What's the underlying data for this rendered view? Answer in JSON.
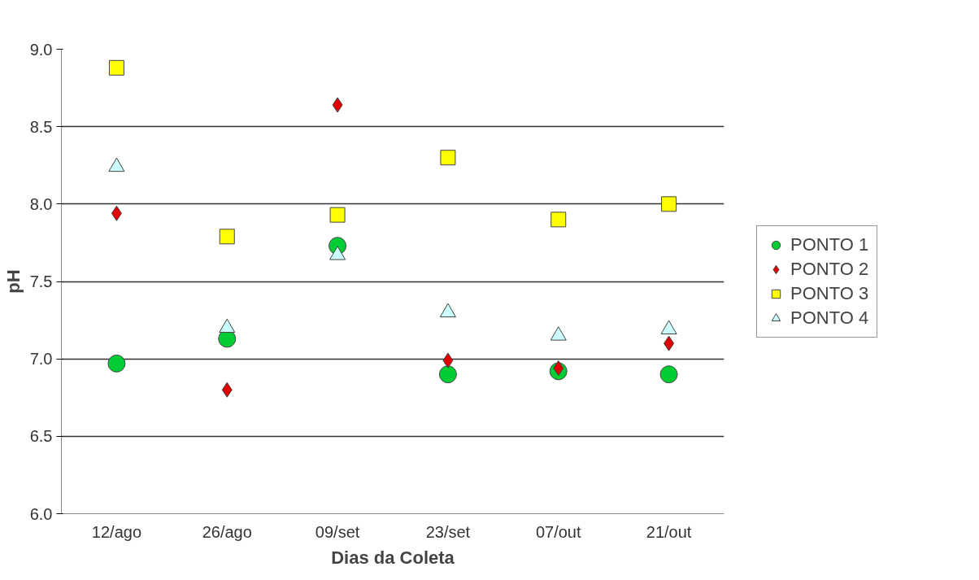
{
  "chart_data": {
    "type": "scatter",
    "xlabel": "Dias da Coleta",
    "ylabel": "pH",
    "categories": [
      "12/ago",
      "26/ago",
      "09/set",
      "23/set",
      "07/out",
      "21/out"
    ],
    "series": [
      {
        "name": "PONTO 1",
        "color": "#00cc33",
        "marker": "circle",
        "values": [
          6.97,
          7.13,
          7.73,
          6.9,
          6.92,
          6.9
        ]
      },
      {
        "name": "PONTO 2",
        "color": "#e00000",
        "marker": "diamond",
        "values": [
          7.94,
          6.8,
          8.64,
          6.99,
          6.94,
          7.1
        ]
      },
      {
        "name": "PONTO 3",
        "color": "#ffff00",
        "marker": "square",
        "values": [
          8.88,
          7.79,
          7.93,
          8.3,
          7.9,
          8.0
        ]
      },
      {
        "name": "PONTO 4",
        "color": "#ccffff",
        "marker": "triangle",
        "values": [
          8.24,
          7.2,
          7.67,
          7.3,
          7.15,
          7.19
        ]
      }
    ],
    "ylim": [
      6.0,
      9.0
    ],
    "yticks": [
      {
        "value": 6.0,
        "label": "6.0"
      },
      {
        "value": 6.5,
        "label": "6.5"
      },
      {
        "value": 7.0,
        "label": "7.0"
      },
      {
        "value": 7.5,
        "label": "7.5"
      },
      {
        "value": 8.0,
        "label": "8.0"
      },
      {
        "value": 8.5,
        "label": "8.5"
      },
      {
        "value": 9.0,
        "label": "9.0"
      }
    ],
    "grid": "y",
    "legend": "right"
  }
}
